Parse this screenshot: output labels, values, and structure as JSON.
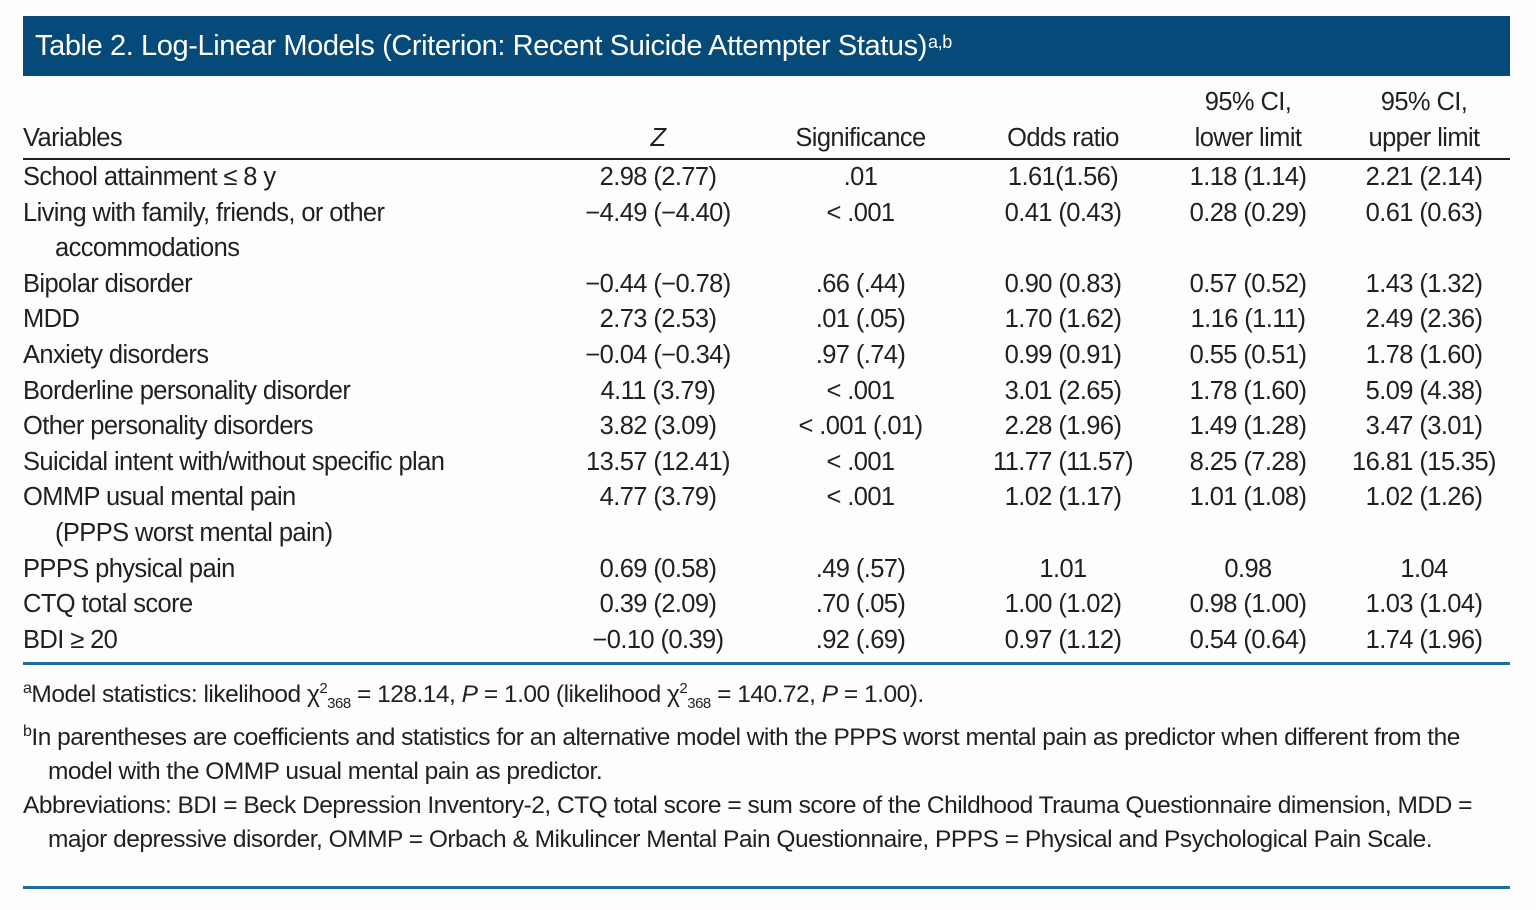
{
  "title": {
    "text": "Table 2. Log-Linear Models (Criterion: Recent Suicide Attempter Status)",
    "superscript": "a,b"
  },
  "colors": {
    "title_bar": "#054a78",
    "rule": "#1f6d9e",
    "text": "#231f20"
  },
  "columns": {
    "variables": "Variables",
    "z": "Z",
    "significance": "Significance",
    "odds_ratio": "Odds ratio",
    "ci_lower_line1": "95% CI,",
    "ci_lower_line2": "lower limit",
    "ci_upper_line1": "95% CI,",
    "ci_upper_line2": "upper limit"
  },
  "rows": [
    {
      "variable": "School attainment ≤ 8 y",
      "variable_cont": "",
      "z": "2.98 (2.77)",
      "sig": ".01",
      "or": "1.61(1.56)",
      "lo": "1.18 (1.14)",
      "hi": "2.21 (2.14)"
    },
    {
      "variable": "Living with family, friends, or other",
      "variable_cont": "accommodations",
      "z": "−4.49 (−4.40)",
      "sig": "< .001",
      "or": "0.41 (0.43)",
      "lo": "0.28 (0.29)",
      "hi": "0.61 (0.63)"
    },
    {
      "variable": "Bipolar disorder",
      "variable_cont": "",
      "z": "−0.44 (−0.78)",
      "sig": ".66 (.44)",
      "or": "0.90 (0.83)",
      "lo": "0.57 (0.52)",
      "hi": "1.43 (1.32)"
    },
    {
      "variable": "MDD",
      "variable_cont": "",
      "z": "2.73 (2.53)",
      "sig": ".01 (.05)",
      "or": "1.70 (1.62)",
      "lo": "1.16 (1.11)",
      "hi": "2.49 (2.36)"
    },
    {
      "variable": "Anxiety disorders",
      "variable_cont": "",
      "z": "−0.04 (−0.34)",
      "sig": ".97 (.74)",
      "or": "0.99 (0.91)",
      "lo": "0.55 (0.51)",
      "hi": "1.78 (1.60)"
    },
    {
      "variable": "Borderline personality disorder",
      "variable_cont": "",
      "z": "4.11 (3.79)",
      "sig": "< .001",
      "or": "3.01 (2.65)",
      "lo": "1.78 (1.60)",
      "hi": "5.09 (4.38)"
    },
    {
      "variable": "Other personality disorders",
      "variable_cont": "",
      "z": "3.82 (3.09)",
      "sig": "< .001 (.01)",
      "or": "2.28 (1.96)",
      "lo": "1.49 (1.28)",
      "hi": "3.47 (3.01)"
    },
    {
      "variable": "Suicidal intent with/without specific plan",
      "variable_cont": "",
      "z": "13.57 (12.41)",
      "sig": "< .001",
      "or": "11.77 (11.57)",
      "lo": "8.25 (7.28)",
      "hi": "16.81 (15.35)"
    },
    {
      "variable": "OMMP usual mental pain",
      "variable_cont": "(PPPS worst mental pain)",
      "z": "4.77 (3.79)",
      "sig": "< .001",
      "or": "1.02 (1.17)",
      "lo": "1.01 (1.08)",
      "hi": "1.02 (1.26)"
    },
    {
      "variable": "PPPS physical pain",
      "variable_cont": "",
      "z": "0.69 (0.58)",
      "sig": ".49 (.57)",
      "or": "1.01",
      "lo": "0.98",
      "hi": "1.04"
    },
    {
      "variable": "CTQ total score",
      "variable_cont": "",
      "z": "0.39 (2.09)",
      "sig": ".70 (.05)",
      "or": "1.00 (1.02)",
      "lo": "0.98 (1.00)",
      "hi": "1.03 (1.04)"
    },
    {
      "variable": "BDI ≥ 20",
      "variable_cont": "",
      "z": "−0.10 (0.39)",
      "sig": ".92 (.69)",
      "or": "0.97 (1.12)",
      "lo": "0.54 (0.64)",
      "hi": "1.74 (1.96)"
    }
  ],
  "footnotes": {
    "a": {
      "marker": "a",
      "p1": "Model statistics: likelihood χ",
      "sup1": "2",
      "sub1": "368",
      "p2": " = 128.14, ",
      "pvar1": "P",
      "p3": " = 1.00 (likelihood χ",
      "sup2": "2",
      "sub2": "368",
      "p4": " = 140.72, ",
      "pvar2": "P",
      "p5": " = 1.00)."
    },
    "b": {
      "marker": "b",
      "text": "In parentheses are coefficients and statistics for an alternative model with the PPPS worst mental pain as predictor when different from the model with the OMMP usual mental pain as predictor."
    },
    "abbreviations": "Abbreviations: BDI = Beck Depression Inventory-2, CTQ total score = sum score of the Childhood Trauma Questionnaire dimension, MDD = major depressive disorder, OMMP = Orbach & Mikulincer Mental Pain Questionnaire, PPPS = Physical and Psychological Pain Scale."
  }
}
